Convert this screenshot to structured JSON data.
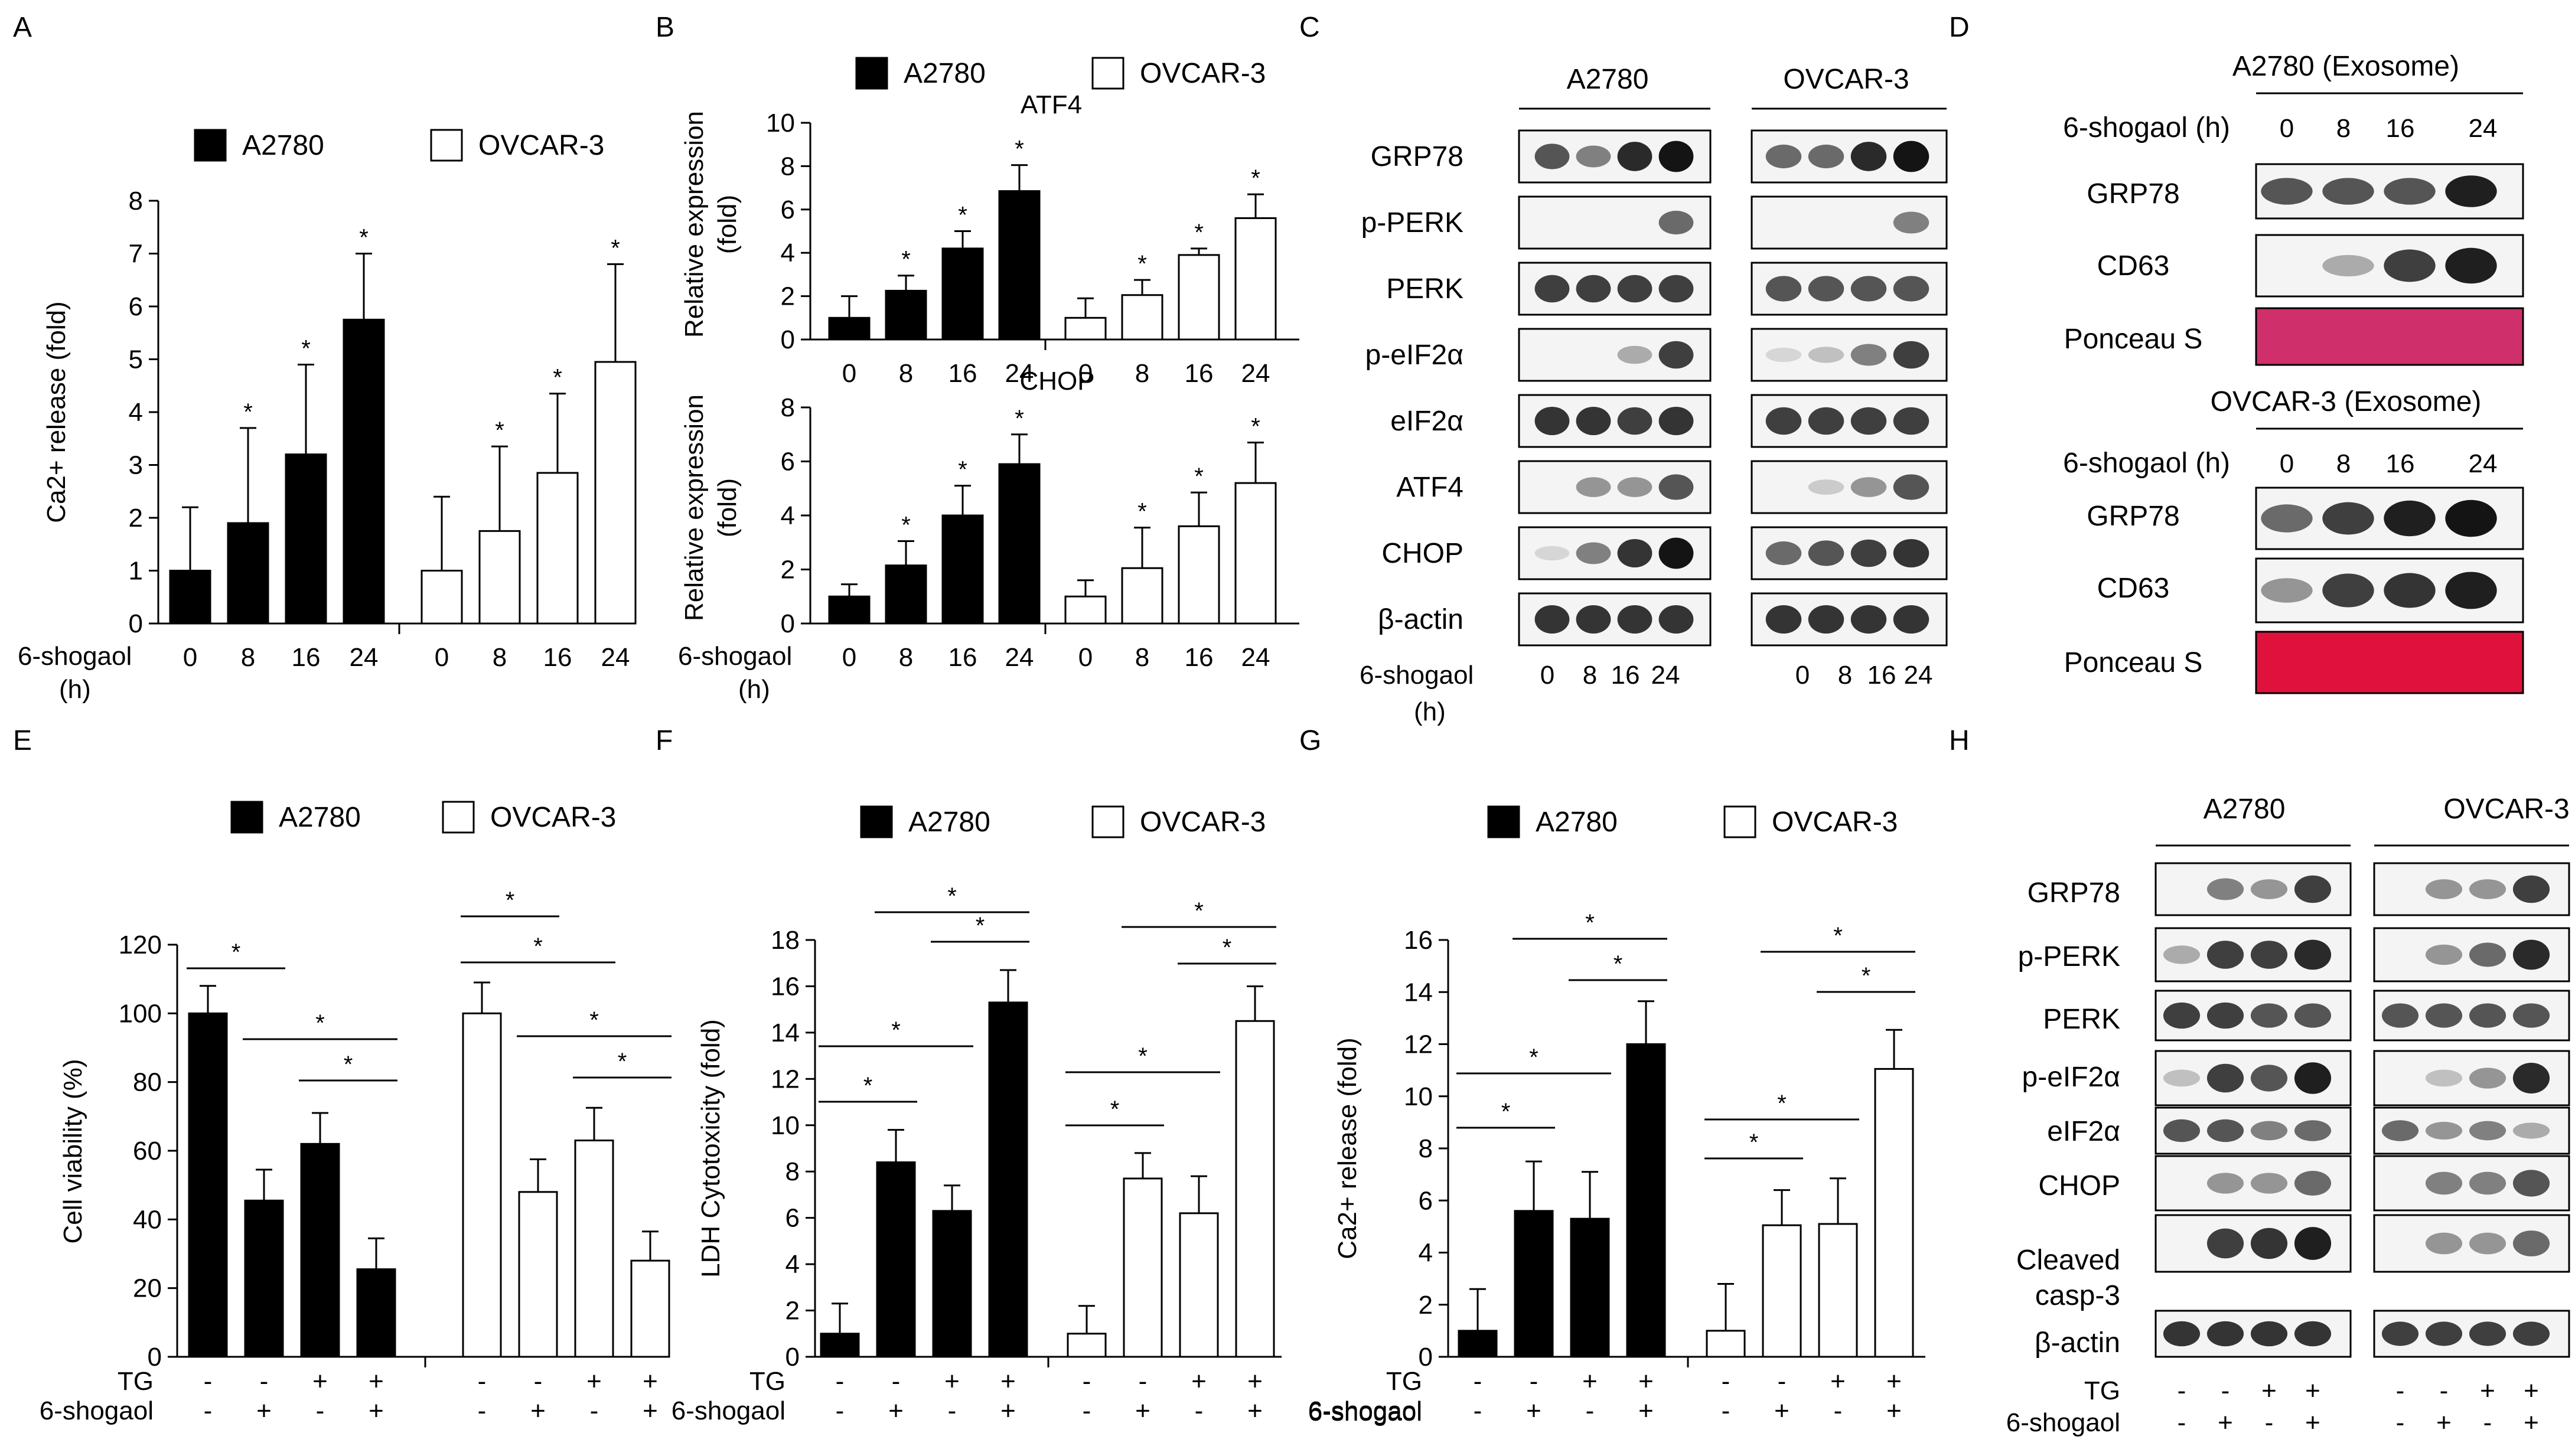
{
  "panel_letters": {
    "A": "A",
    "B": "B",
    "C": "C",
    "D": "D",
    "E": "E",
    "F": "F",
    "G": "G",
    "H": "H"
  },
  "colors": {
    "a2780": "#000000",
    "ovcar3": "#ffffff",
    "ponceau_top": "#cf2f6a",
    "ponceau_bottom": "#e0123d"
  },
  "chart_data": [
    {
      "id": "A",
      "type": "bar",
      "title": "",
      "legend": [
        "A2780",
        "OVCAR-3"
      ],
      "ylabel": "Ca2+ release (fold)",
      "xlabel_lines": [
        "6-shogaol",
        "(h)"
      ],
      "ylim": [
        0,
        8
      ],
      "yticks": [
        0,
        1,
        2,
        3,
        4,
        5,
        6,
        7,
        8
      ],
      "categories": [
        "0",
        "8",
        "16",
        "24"
      ],
      "series": [
        {
          "name": "A2780",
          "values": [
            1.0,
            1.9,
            3.2,
            5.75
          ],
          "errors": [
            1.2,
            1.8,
            1.7,
            1.25
          ],
          "sig": [
            "",
            "*",
            "*",
            "*"
          ]
        },
        {
          "name": "OVCAR-3",
          "values": [
            1.0,
            1.75,
            2.85,
            4.95
          ],
          "errors": [
            1.4,
            1.6,
            1.5,
            1.85
          ],
          "sig": [
            "",
            "*",
            "*",
            "*"
          ]
        }
      ]
    },
    {
      "id": "B1",
      "type": "bar",
      "title": "ATF4",
      "legend": [
        "A2780",
        "OVCAR-3"
      ],
      "ylabel": "Relative expression (fold)",
      "ylim": [
        0,
        10
      ],
      "yticks": [
        0,
        2,
        4,
        6,
        8,
        10
      ],
      "categories": [
        "0",
        "8",
        "16",
        "24"
      ],
      "series": [
        {
          "name": "A2780",
          "values": [
            1.0,
            2.25,
            4.2,
            6.85
          ],
          "errors": [
            1.0,
            0.7,
            0.8,
            1.2
          ],
          "sig": [
            "",
            "*",
            "*",
            "*"
          ]
        },
        {
          "name": "OVCAR-3",
          "values": [
            1.0,
            2.05,
            3.9,
            5.6
          ],
          "errors": [
            0.9,
            0.7,
            0.3,
            1.1
          ],
          "sig": [
            "",
            "*",
            "*",
            "*"
          ]
        }
      ]
    },
    {
      "id": "B2",
      "type": "bar",
      "title": "CHOP",
      "ylabel": "Relative expression (fold)",
      "xlabel_lines": [
        "6-shogaol",
        "(h)"
      ],
      "ylim": [
        0,
        8
      ],
      "yticks": [
        0,
        2,
        4,
        6,
        8
      ],
      "categories": [
        "0",
        "8",
        "16",
        "24"
      ],
      "series": [
        {
          "name": "A2780",
          "values": [
            1.0,
            2.15,
            4.0,
            5.9
          ],
          "errors": [
            0.45,
            0.9,
            1.1,
            1.1
          ],
          "sig": [
            "",
            "*",
            "*",
            "*"
          ]
        },
        {
          "name": "OVCAR-3",
          "values": [
            1.0,
            2.05,
            3.6,
            5.2
          ],
          "errors": [
            0.6,
            1.5,
            1.25,
            1.5
          ],
          "sig": [
            "",
            "*",
            "*",
            "*"
          ]
        }
      ]
    },
    {
      "id": "E",
      "type": "bar",
      "legend": [
        "A2780",
        "OVCAR-3"
      ],
      "ylabel": "Cell viability  (%)",
      "ylim": [
        0,
        120
      ],
      "yticks": [
        0,
        20,
        40,
        60,
        80,
        100,
        120
      ],
      "row_labels": [
        "TG",
        "6-shogaol"
      ],
      "conditions": {
        "TG": [
          "-",
          "-",
          "+",
          "+"
        ],
        "6-shogaol": [
          "-",
          "+",
          "-",
          "+"
        ]
      },
      "series": [
        {
          "name": "A2780",
          "values": [
            100,
            45.5,
            62,
            25.5
          ],
          "errors": [
            8,
            9,
            9,
            9
          ]
        },
        {
          "name": "OVCAR-3",
          "values": [
            100,
            48,
            63,
            28
          ],
          "errors": [
            9,
            9.5,
            9.5,
            8.5
          ]
        }
      ],
      "brackets": [
        {
          "group": 0,
          "from": 0,
          "to": 1,
          "label": "*"
        },
        {
          "group": 0,
          "from": 1,
          "to": 3,
          "label": "*"
        },
        {
          "group": 0,
          "from": 2,
          "to": 3,
          "label": "*"
        },
        {
          "group": 1,
          "from": 0,
          "to": 1,
          "label": "*"
        },
        {
          "group": 1,
          "from": 0,
          "to": 2,
          "label": "*"
        },
        {
          "group": 1,
          "from": 1,
          "to": 3,
          "label": "*"
        },
        {
          "group": 1,
          "from": 2,
          "to": 3,
          "label": "*"
        }
      ]
    },
    {
      "id": "F",
      "type": "bar",
      "legend": [
        "A2780",
        "OVCAR-3"
      ],
      "ylabel": "LDH Cytotoxicity (fold)",
      "ylim": [
        0,
        18
      ],
      "yticks": [
        0,
        2,
        4,
        6,
        8,
        10,
        12,
        14,
        16,
        18
      ],
      "row_labels": [
        "TG",
        "6-shogaol"
      ],
      "conditions": {
        "TG": [
          "-",
          "-",
          "+",
          "+"
        ],
        "6-shogaol": [
          "-",
          "+",
          "-",
          "+"
        ]
      },
      "series": [
        {
          "name": "A2780",
          "values": [
            1.0,
            8.4,
            6.3,
            15.3
          ],
          "errors": [
            1.3,
            1.4,
            1.1,
            1.4
          ]
        },
        {
          "name": "OVCAR-3",
          "values": [
            1.0,
            7.7,
            6.2,
            14.5
          ],
          "errors": [
            1.2,
            1.1,
            1.6,
            1.5
          ]
        }
      ],
      "brackets": [
        {
          "group": 0,
          "from": 0,
          "to": 1,
          "label": "*"
        },
        {
          "group": 0,
          "from": 0,
          "to": 2,
          "label": "*"
        },
        {
          "group": 0,
          "from": 2,
          "to": 3,
          "label": "*"
        },
        {
          "group": 0,
          "from": 1,
          "to": 3,
          "label": "*"
        },
        {
          "group": 1,
          "from": 0,
          "to": 1,
          "label": "*"
        },
        {
          "group": 1,
          "from": 0,
          "to": 2,
          "label": "*"
        },
        {
          "group": 1,
          "from": 2,
          "to": 3,
          "label": "*"
        },
        {
          "group": 1,
          "from": 1,
          "to": 3,
          "label": "*"
        }
      ]
    },
    {
      "id": "G",
      "type": "bar",
      "legend": [
        "A2780",
        "OVCAR-3"
      ],
      "ylabel": "Ca2+ release (fold)",
      "ylim": [
        0,
        16
      ],
      "yticks": [
        0,
        2,
        4,
        6,
        8,
        10,
        12,
        14,
        16
      ],
      "row_labels": [
        "TG",
        "6-shogaol"
      ],
      "conditions": {
        "TG": [
          "-",
          "-",
          "+",
          "+"
        ],
        "6-shogaol": [
          "-",
          "+",
          "-",
          "+"
        ]
      },
      "series": [
        {
          "name": "A2780",
          "values": [
            1.0,
            5.6,
            5.3,
            12.0
          ],
          "errors": [
            1.6,
            1.9,
            1.8,
            1.65
          ]
        },
        {
          "name": "OVCAR-3",
          "values": [
            1.0,
            5.05,
            5.1,
            11.05
          ],
          "errors": [
            1.8,
            1.35,
            1.75,
            1.5
          ]
        }
      ],
      "brackets": [
        {
          "group": 0,
          "from": 0,
          "to": 1,
          "label": "*"
        },
        {
          "group": 0,
          "from": 0,
          "to": 2,
          "label": "*"
        },
        {
          "group": 0,
          "from": 2,
          "to": 3,
          "label": "*"
        },
        {
          "group": 0,
          "from": 1,
          "to": 3,
          "label": "*"
        },
        {
          "group": 1,
          "from": 0,
          "to": 1,
          "label": "*"
        },
        {
          "group": 1,
          "from": 0,
          "to": 2,
          "label": "*"
        },
        {
          "group": 1,
          "from": 2,
          "to": 3,
          "label": "*"
        },
        {
          "group": 1,
          "from": 1,
          "to": 3,
          "label": "*"
        }
      ]
    }
  ],
  "blots": {
    "C": {
      "groups": [
        "A2780",
        "OVCAR-3"
      ],
      "rows": [
        "GRP78",
        "p-PERK",
        "PERK",
        "p-eIF2α",
        "eIF2α",
        "ATF4",
        "CHOP",
        "β-actin"
      ],
      "xlabel_lines": [
        "6-shogaol",
        "(h)"
      ],
      "lanes": [
        "0",
        "8",
        "16",
        "24"
      ],
      "lanes_b": [
        "0",
        "8",
        "16",
        "24"
      ],
      "intensity": {
        "A2780": [
          [
            0.7,
            0.5,
            0.9,
            1.0
          ],
          [
            0,
            0,
            0,
            0.6
          ],
          [
            0.8,
            0.8,
            0.8,
            0.8
          ],
          [
            0,
            0,
            0.3,
            0.8
          ],
          [
            0.85,
            0.85,
            0.8,
            0.85
          ],
          [
            0,
            0.4,
            0.4,
            0.7
          ],
          [
            0.1,
            0.5,
            0.85,
            1.0
          ],
          [
            0.85,
            0.85,
            0.85,
            0.85
          ]
        ],
        "OVCAR-3": [
          [
            0.6,
            0.6,
            0.9,
            1.0
          ],
          [
            0,
            0,
            0,
            0.5
          ],
          [
            0.7,
            0.7,
            0.7,
            0.7
          ],
          [
            0.1,
            0.2,
            0.5,
            0.8
          ],
          [
            0.8,
            0.8,
            0.8,
            0.8
          ],
          [
            0,
            0.15,
            0.4,
            0.7
          ],
          [
            0.6,
            0.7,
            0.8,
            0.85
          ],
          [
            0.85,
            0.85,
            0.85,
            0.85
          ]
        ]
      }
    },
    "D": {
      "top_title": "A2780 (Exosome)",
      "bottom_title": "OVCAR-3 (Exosome)",
      "time_label": "6-shogaol (h)",
      "lanes": [
        "0",
        "8",
        "16",
        "24"
      ],
      "rows": [
        "GRP78",
        "CD63",
        "Ponceau S"
      ],
      "intensity_top": [
        [
          0.7,
          0.7,
          0.7,
          0.95
        ],
        [
          0,
          0.3,
          0.8,
          0.95
        ]
      ],
      "intensity_bottom": [
        [
          0.6,
          0.8,
          0.95,
          1.0
        ],
        [
          0.4,
          0.8,
          0.85,
          0.95
        ]
      ]
    },
    "H": {
      "groups": [
        "A2780",
        "OVCAR-3"
      ],
      "rows": [
        "GRP78",
        "p-PERK",
        "PERK",
        "p-eIF2α",
        "eIF2α",
        "CHOP",
        "Cleaved casp-3",
        "β-actin"
      ],
      "row_labels": [
        "TG",
        "6-shogaol"
      ],
      "conditions": {
        "TG": [
          "-",
          "-",
          "+",
          "+"
        ],
        "6-shogaol": [
          "-",
          "+",
          "-",
          "+"
        ]
      },
      "intensity": {
        "A2780": [
          [
            0,
            0.5,
            0.4,
            0.8
          ],
          [
            0.3,
            0.8,
            0.8,
            0.9
          ],
          [
            0.8,
            0.8,
            0.7,
            0.7
          ],
          [
            0.2,
            0.8,
            0.7,
            0.95
          ],
          [
            0.7,
            0.7,
            0.5,
            0.6
          ],
          [
            0,
            0.4,
            0.4,
            0.6
          ],
          [
            0,
            0.8,
            0.85,
            0.95
          ],
          [
            0.85,
            0.85,
            0.85,
            0.85
          ]
        ],
        "OVCAR-3": [
          [
            0,
            0.4,
            0.4,
            0.8
          ],
          [
            0,
            0.4,
            0.6,
            0.9
          ],
          [
            0.7,
            0.7,
            0.7,
            0.7
          ],
          [
            0,
            0.2,
            0.4,
            0.9
          ],
          [
            0.6,
            0.4,
            0.5,
            0.3
          ],
          [
            0,
            0.5,
            0.5,
            0.7
          ],
          [
            0,
            0.4,
            0.4,
            0.6
          ],
          [
            0.8,
            0.8,
            0.8,
            0.8
          ]
        ]
      }
    }
  }
}
